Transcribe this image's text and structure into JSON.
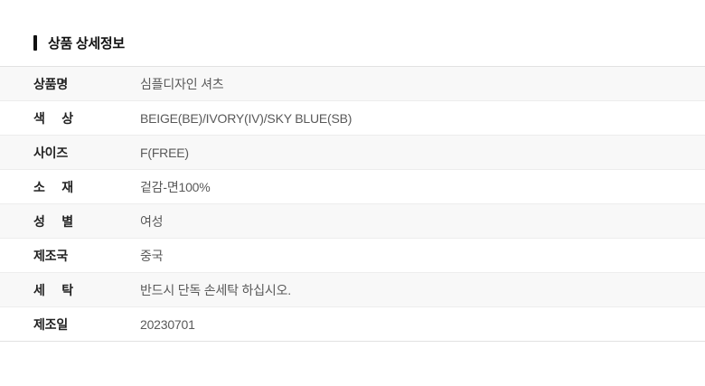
{
  "header": {
    "title": "상품 상세정보"
  },
  "colors": {
    "title_text": "#111111",
    "title_marker": "#111111",
    "label_text": "#222222",
    "value_text": "#595959",
    "row_alt_bg": "#f8f8f8",
    "outer_border": "#e2e2e2",
    "inner_border": "#ededed"
  },
  "table": {
    "rows": [
      {
        "label": "상품명",
        "value": "심플디자인 셔츠"
      },
      {
        "label": "색 상",
        "value": "BEIGE(BE)/IVORY(IV)/SKY BLUE(SB)"
      },
      {
        "label": "사이즈",
        "value": "F(FREE)"
      },
      {
        "label": "소 재",
        "value": "겉감-면100%"
      },
      {
        "label": "성 별",
        "value": "여성"
      },
      {
        "label": "제조국",
        "value": "중국"
      },
      {
        "label": "세 탁",
        "value": "반드시 단독 손세탁 하십시오."
      },
      {
        "label": "제조일",
        "value": "20230701"
      }
    ]
  }
}
